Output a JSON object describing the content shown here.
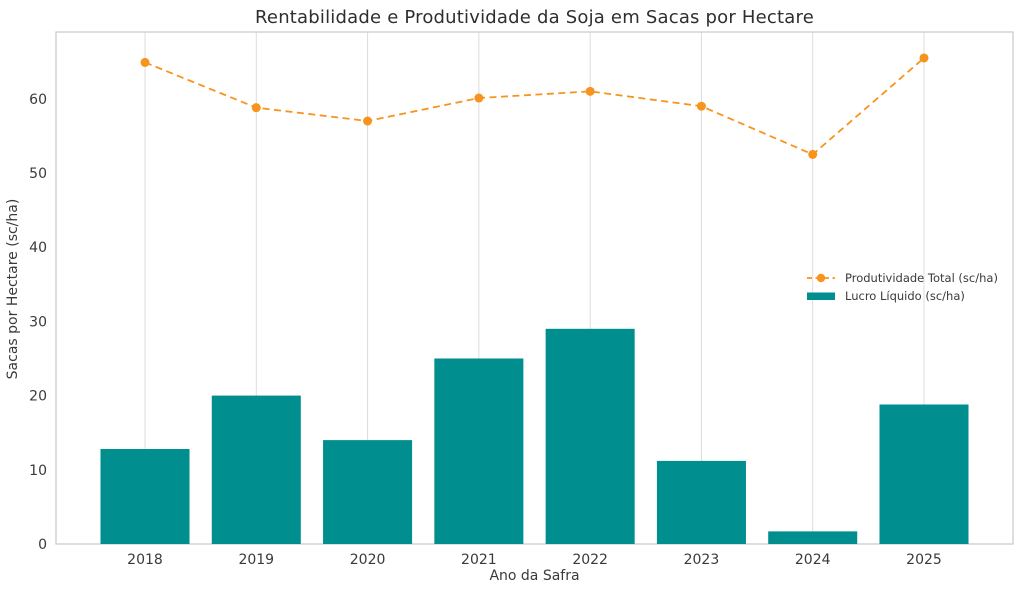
{
  "chart_data": {
    "type": "bar+line combo",
    "title": "Rentabilidade e Produtividade da Soja em Sacas por Hectare",
    "xlabel": "Ano da Safra",
    "ylabel": "Sacas por Hectare (sc/ha)",
    "categories": [
      "2018",
      "2019",
      "2020",
      "2021",
      "2022",
      "2023",
      "2024",
      "2025"
    ],
    "series": [
      {
        "name": "Produtividade Total (sc/ha)",
        "type": "line",
        "style": "dashed",
        "marker": "circle",
        "color": "#f7941e",
        "values": [
          64.9,
          58.8,
          57.0,
          60.1,
          61.0,
          59.0,
          52.5,
          65.5
        ]
      },
      {
        "name": "Lucro Líquido (sc/ha)",
        "type": "bar",
        "color": "#008e8e",
        "values": [
          12.8,
          20.0,
          14.0,
          25.0,
          29.0,
          11.2,
          1.7,
          18.8
        ]
      }
    ],
    "ylim": [
      0,
      69
    ],
    "yticks": [
      0,
      10,
      20,
      30,
      40,
      50,
      60
    ],
    "grid": "vertical-only",
    "grid_color": "#dcdcdc",
    "spine_color": "#c9c9c9",
    "tick_label_color": "#3a3a3a",
    "legend_position": "center-right, frameless"
  }
}
